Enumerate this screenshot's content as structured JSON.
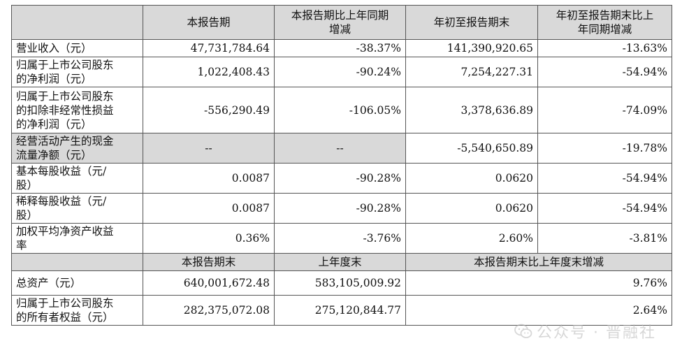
{
  "top_header": [
    "",
    "本报告期",
    "本报告期比上年同期\n增减",
    "年初至报告期末",
    "年初至报告期末比上\n年同期增减"
  ],
  "rows": [
    {
      "label": "营业收入（元）",
      "v1": "47,731,784.64",
      "v2": "-38.37%",
      "v3": "141,390,920.65",
      "v4": "-13.63%"
    },
    {
      "label": "归属于上市公司股东\n的净利润（元）",
      "v1": "1,022,408.43",
      "v2": "-90.24%",
      "v3": "7,254,227.31",
      "v4": "-54.94%"
    },
    {
      "label": "归属于上市公司股东\n的扣除非经常性损益\n的净利润（元）",
      "v1": "-556,290.49",
      "v2": "-106.05%",
      "v3": "3,378,636.89",
      "v4": "-74.09%"
    },
    {
      "label": "经营活动产生的现金\n流量净额（元）",
      "v1": "--",
      "v2": "--",
      "v3": "-5,540,650.89",
      "v4": "-19.78%"
    },
    {
      "label": "基本每股收益（元/\n股）",
      "v1": "0.0087",
      "v2": "-90.28%",
      "v3": "0.0620",
      "v4": "-54.94%"
    },
    {
      "label": "稀释每股收益（元/\n股）",
      "v1": "0.0087",
      "v2": "-90.28%",
      "v3": "0.0620",
      "v4": "-54.94%"
    },
    {
      "label": "加权平均净资产收益\n率",
      "v1": "0.36%",
      "v2": "-3.76%",
      "v3": "2.60%",
      "v4": "-3.81%"
    }
  ],
  "sub_header": [
    "",
    "本报告期末",
    "上年度末",
    "本报告期末比上年度末增减"
  ],
  "bottom_rows": [
    {
      "label": "总资产（元）",
      "v1": "640,001,672.48",
      "v2": "583,105,009.92",
      "v3": "9.76%"
    },
    {
      "label": "归属于上市公司股东\n的所有者权益（元）",
      "v1": "282,375,072.08",
      "v2": "275,120,844.77",
      "v3": "2.64%"
    }
  ],
  "watermark": {
    "text": "公众号 · 晋融社",
    "icon": "wechat-icon"
  }
}
